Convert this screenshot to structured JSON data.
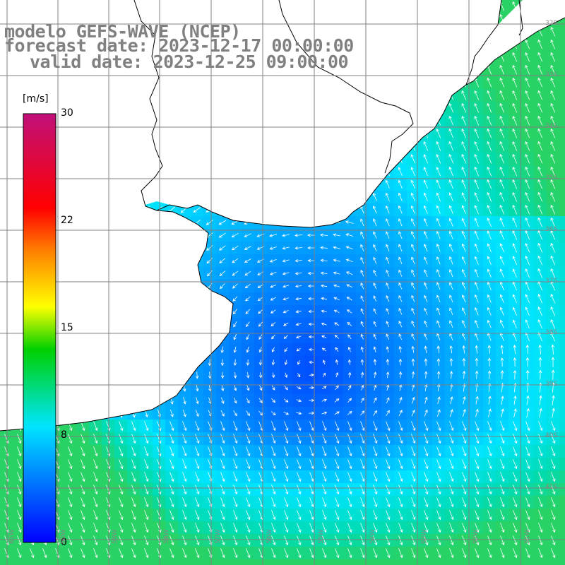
{
  "title": {
    "model": "modelo GEFS-WAVE (NCEP)",
    "forecast": "forecast date: 2023-12-17 00:00:00",
    "valid": "valid date: 2023-12-25 09:00:00"
  },
  "colorbar": {
    "unit": "[m/s]",
    "ticks": [
      "0",
      "8",
      "15",
      "22",
      "30"
    ],
    "range": [
      0,
      30
    ],
    "colors": [
      "#0000ff",
      "#00e5ff",
      "#00d000",
      "#ffff00",
      "#ff8000",
      "#ff0000",
      "#c0107a"
    ]
  },
  "grid": {
    "lat_labels": [
      "32S",
      "33S",
      "34S",
      "35S",
      "36S",
      "37S",
      "38S",
      "39S",
      "40S",
      "41S"
    ],
    "lon_labels": [
      "61W",
      "60W",
      "59W",
      "58W",
      "57W",
      "56W",
      "55W",
      "54W",
      "53W",
      "52W",
      "51W"
    ]
  },
  "map_colors": {
    "land": "#ffffff",
    "coast": "#000000",
    "grid": "#808080",
    "arrow": "#ffffff"
  }
}
